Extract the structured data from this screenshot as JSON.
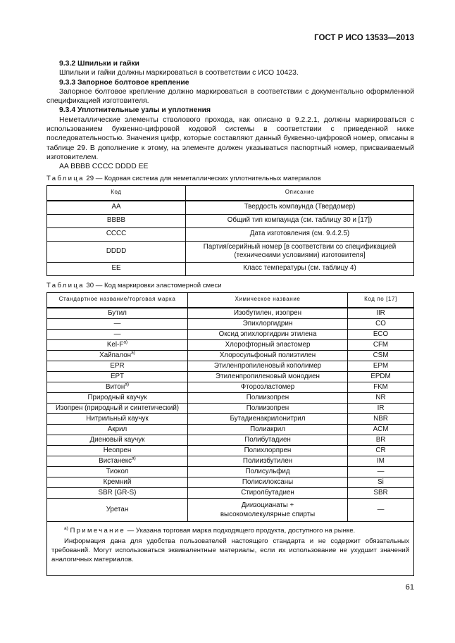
{
  "header": "ГОСТ Р ИСО 13533—2013",
  "sections": [
    {
      "heading": "9.3.2 Шпильки и гайки",
      "text": "Шпильки и гайки должны маркироваться в соответствии с ИСО 10423."
    },
    {
      "heading": "9.3.3 Запорное болтовое крепление",
      "text": "Запорное болтовое крепление должно маркироваться в соответствии с документально оформленной спецификацией изготовителя."
    },
    {
      "heading": "9.3.4 Уплотнительные узлы и уплотнения",
      "text": "Неметаллические элементы стволового прохода, как описано в 9.2.2.1, должны маркироваться с использованием буквенно-цифровой кодовой системы в соответствии с приведенной ниже последовательностью. Значения цифр, которые составляют данный буквенно-цифровой номер, описаны в таблице 29. В дополнение к этому, на элементе должен указываться паспортный номер, присваиваемый изготовителем.",
      "code": "AA BBBB CCCC DDDD EE"
    }
  ],
  "table29": {
    "caption_label": "Таблица",
    "caption_text": "29 — Кодовая система для неметаллических уплотнительных материалов",
    "columns": [
      "Код",
      "Описание"
    ],
    "rows": [
      [
        "AA",
        "Твердость компаунда (Твердомер)"
      ],
      [
        "BBBB",
        "Общий тип компаунда (см. таблицу 30 и [17])"
      ],
      [
        "CCCC",
        "Дата изготовления (см. 9.4.2.5)"
      ],
      [
        "DDDD",
        "Партия/серийный номер [в соответствии со спецификацией (техническими условиями) изготовителя]"
      ],
      [
        "EE",
        "Класс температуры (см. таблицу 4)"
      ]
    ]
  },
  "table30": {
    "caption_label": "Таблица",
    "caption_text": "30 — Код маркировки эластомерной смеси",
    "columns": [
      "Стандартное название/торговая марка",
      "Химическое название",
      "Код по [17]"
    ],
    "rows": [
      {
        "name": "Бутил",
        "sup": "",
        "chem": "Изобутилен, изопрен",
        "code": "IIR"
      },
      {
        "name": "—",
        "sup": "",
        "chem": "Эпихлоргидрин",
        "code": "CO"
      },
      {
        "name": "—",
        "sup": "",
        "chem": "Оксид эпихлоргидрин этилена",
        "code": "ECO"
      },
      {
        "name": "Kel-F",
        "sup": "a)",
        "chem": "Хлорофторный эластомер",
        "code": "CFM"
      },
      {
        "name": "Хайпалон",
        "sup": "a)",
        "chem": "Хлоросульфоный полиэтилен",
        "code": "CSM"
      },
      {
        "name": "EPR",
        "sup": "",
        "chem": "Этиленпропиленовый кополимер",
        "code": "EPM"
      },
      {
        "name": "EPT",
        "sup": "",
        "chem": "Этиленпропиленовый монодиен",
        "code": "EPDM"
      },
      {
        "name": "Витон",
        "sup": "a)",
        "chem": "Фтороэластомер",
        "code": "FKM"
      },
      {
        "name": "Природный каучук",
        "sup": "",
        "chem": "Полиизопрен",
        "code": "NR"
      },
      {
        "name": "Изопрен (природный и синтетический)",
        "sup": "",
        "chem": "Полиизопрен",
        "code": "IR"
      },
      {
        "name": "Нитрильный каучук",
        "sup": "",
        "chem": "Бутадиенакрилонитрил",
        "code": "NBR"
      },
      {
        "name": "Акрил",
        "sup": "",
        "chem": "Полиакрил",
        "code": "ACM"
      },
      {
        "name": "Диеновый каучук",
        "sup": "",
        "chem": "Полибутадиен",
        "code": "BR"
      },
      {
        "name": "Неопрен",
        "sup": "",
        "chem": "Полихлорпрен",
        "code": "CR"
      },
      {
        "name": "Вистанекс",
        "sup": "a)",
        "chem": "Полиизбутилен",
        "code": "IM"
      },
      {
        "name": "Тиокол",
        "sup": "",
        "chem": "Полисульфид",
        "code": "—"
      },
      {
        "name": "Кремний",
        "sup": "",
        "chem": "Полисилоксаны",
        "code": "Si"
      },
      {
        "name": "SBR (GR-S)",
        "sup": "",
        "chem": "Стиролбутадиен",
        "code": "SBR"
      },
      {
        "name": "Уретан",
        "sup": "",
        "chem": "Диизоцианаты + высокомолекулярные спирты",
        "code": "—"
      }
    ],
    "note_sup": "a)",
    "note_label": "Примечание",
    "note_text": "— Указана торговая марка подходящего продукта, доступного на рынке.",
    "note_text2": "Информация дана для удобства пользователей настоящего стандарта и не содержит обязательных требований. Могут использоваться эквивалентные материалы, если их использование не ухудшит значений аналогичных материалов."
  },
  "page_number": "61"
}
